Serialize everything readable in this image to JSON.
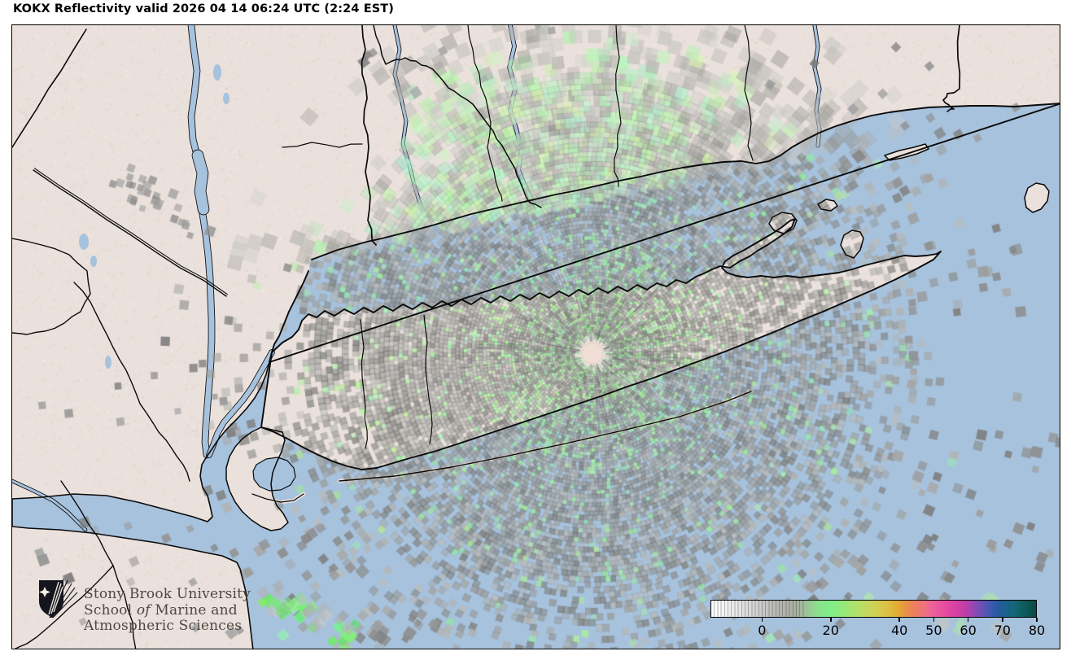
{
  "title": "KOKX Reflectivity valid 2026 04 14 06:24 UTC (2:24 EST)",
  "header": {
    "station": "KOKX",
    "product": "Reflectivity",
    "valid_utc": "2026 04 14 06:24 UTC",
    "valid_local": "2:24 EST"
  },
  "branding": {
    "line1": "Stony Brook University",
    "line2_pre": "School ",
    "line2_italic": "of",
    "line2_post": " Marine and",
    "line3": "Atmospheric Sciences"
  },
  "colorbar": {
    "min_dbz": -15,
    "max_dbz": 80,
    "tick_values": [
      0,
      20,
      40,
      50,
      60,
      70,
      80
    ],
    "tick_labels": [
      "0",
      "20",
      "40",
      "50",
      "60",
      "70",
      "80"
    ],
    "gradient": [
      {
        "p": 0,
        "c": "#ffffff"
      },
      {
        "p": 5,
        "c": "#f2f2f2"
      },
      {
        "p": 10,
        "c": "#e0e0e0"
      },
      {
        "p": 16,
        "c": "#c9c9c9"
      },
      {
        "p": 21,
        "c": "#b5b5b1"
      },
      {
        "p": 26,
        "c": "#a9ada0"
      },
      {
        "p": 30,
        "c": "#9bc896"
      },
      {
        "p": 33,
        "c": "#8be08c"
      },
      {
        "p": 37,
        "c": "#80ee87"
      },
      {
        "p": 41,
        "c": "#98e878"
      },
      {
        "p": 45,
        "c": "#b2e069"
      },
      {
        "p": 50,
        "c": "#ccd355"
      },
      {
        "p": 54,
        "c": "#dcc145"
      },
      {
        "p": 58,
        "c": "#e3a833"
      },
      {
        "p": 60,
        "c": "#e89149"
      },
      {
        "p": 63,
        "c": "#ec7d62"
      },
      {
        "p": 66,
        "c": "#ee7083"
      },
      {
        "p": 68,
        "c": "#ed619a"
      },
      {
        "p": 72,
        "c": "#e44d9f"
      },
      {
        "p": 75,
        "c": "#d840a2"
      },
      {
        "p": 78,
        "c": "#c23da7"
      },
      {
        "p": 80,
        "c": "#a344af"
      },
      {
        "p": 82,
        "c": "#7f4cb6"
      },
      {
        "p": 84,
        "c": "#5e53b4"
      },
      {
        "p": 86,
        "c": "#4158ae"
      },
      {
        "p": 88,
        "c": "#2958a3"
      },
      {
        "p": 90,
        "c": "#1d5f90"
      },
      {
        "p": 93,
        "c": "#15687a"
      },
      {
        "p": 95,
        "c": "#0f6263"
      },
      {
        "p": 98,
        "c": "#0a5351"
      },
      {
        "p": 100,
        "c": "#084844"
      }
    ]
  },
  "map_colors": {
    "land": "#ebe1dc",
    "water": "#a7c2dd",
    "boundary": "#0a0a0a",
    "echo_gray": "#8f8f8f",
    "echo_green": "#8fe896",
    "echo_green_bright": "#6fe66f",
    "center_dot": "#f1ded7",
    "shield": "#15151d",
    "logo_text": "#45403d"
  }
}
